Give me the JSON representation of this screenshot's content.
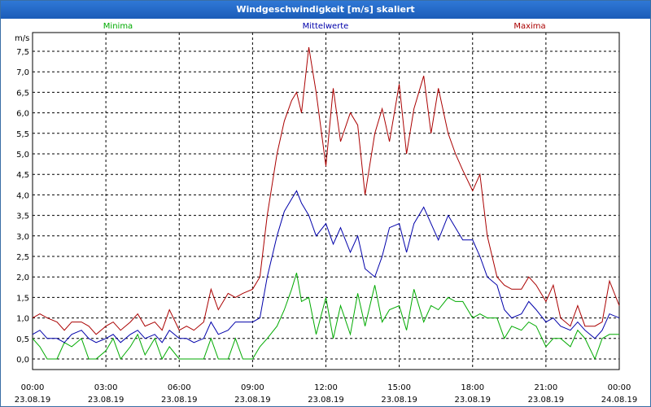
{
  "chart_data": {
    "type": "line",
    "title": "Windgeschwindigkeit [m/s] skaliert",
    "ylabel": "m/s",
    "ylim": [
      -0.2,
      8.0
    ],
    "y_ticks": [
      0.0,
      0.5,
      1.0,
      1.5,
      2.0,
      2.5,
      3.0,
      3.5,
      4.0,
      4.5,
      5.0,
      5.5,
      6.0,
      6.5,
      7.0,
      7.5
    ],
    "y_tick_labels": [
      "0,0",
      "0,5",
      "1,0",
      "1,5",
      "2,0",
      "2,5",
      "3,0",
      "3,5",
      "4,0",
      "4,5",
      "5,0",
      "5,5",
      "6,0",
      "6,5",
      "7,0",
      "7,5"
    ],
    "x_ticks": [
      {
        "time": "00:00",
        "date": "23.08.19"
      },
      {
        "time": "03:00",
        "date": "23.08.19"
      },
      {
        "time": "06:00",
        "date": "23.08.19"
      },
      {
        "time": "09:00",
        "date": "23.08.19"
      },
      {
        "time": "12:00",
        "date": "23.08.19"
      },
      {
        "time": "15:00",
        "date": "23.08.19"
      },
      {
        "time": "18:00",
        "date": "23.08.19"
      },
      {
        "time": "21:00",
        "date": "23.08.19"
      },
      {
        "time": "00:00",
        "date": "24.08.19"
      }
    ],
    "grid": true,
    "legend": "top",
    "series": [
      {
        "name": "Minima",
        "color": "#00aa00",
        "points": [
          [
            0,
            0.5
          ],
          [
            0.3,
            0.3
          ],
          [
            0.6,
            0.0
          ],
          [
            1,
            0.0
          ],
          [
            1.3,
            0.4
          ],
          [
            1.6,
            0.3
          ],
          [
            2,
            0.5
          ],
          [
            2.3,
            0.0
          ],
          [
            2.6,
            0.0
          ],
          [
            3,
            0.2
          ],
          [
            3.3,
            0.5
          ],
          [
            3.6,
            0.0
          ],
          [
            4,
            0.3
          ],
          [
            4.3,
            0.6
          ],
          [
            4.6,
            0.1
          ],
          [
            5,
            0.5
          ],
          [
            5.3,
            0.0
          ],
          [
            5.6,
            0.3
          ],
          [
            6,
            0.0
          ],
          [
            6.3,
            0.0
          ],
          [
            6.6,
            0.0
          ],
          [
            7,
            0.0
          ],
          [
            7.3,
            0.5
          ],
          [
            7.6,
            0.0
          ],
          [
            8,
            0.0
          ],
          [
            8.3,
            0.5
          ],
          [
            8.6,
            0.0
          ],
          [
            9,
            0.0
          ],
          [
            9.3,
            0.3
          ],
          [
            9.6,
            0.5
          ],
          [
            10,
            0.8
          ],
          [
            10.3,
            1.2
          ],
          [
            10.6,
            1.7
          ],
          [
            10.8,
            2.1
          ],
          [
            11,
            1.4
          ],
          [
            11.3,
            1.5
          ],
          [
            11.6,
            0.6
          ],
          [
            12,
            1.5
          ],
          [
            12.3,
            0.5
          ],
          [
            12.6,
            1.3
          ],
          [
            13,
            0.6
          ],
          [
            13.3,
            1.6
          ],
          [
            13.6,
            0.8
          ],
          [
            14,
            1.8
          ],
          [
            14.3,
            0.9
          ],
          [
            14.6,
            1.2
          ],
          [
            15,
            1.3
          ],
          [
            15.3,
            0.7
          ],
          [
            15.6,
            1.7
          ],
          [
            16,
            0.9
          ],
          [
            16.3,
            1.3
          ],
          [
            16.6,
            1.2
          ],
          [
            17,
            1.5
          ],
          [
            17.3,
            1.4
          ],
          [
            17.6,
            1.4
          ],
          [
            18,
            1.0
          ],
          [
            18.3,
            1.1
          ],
          [
            18.6,
            1.0
          ],
          [
            19,
            1.0
          ],
          [
            19.3,
            0.5
          ],
          [
            19.6,
            0.8
          ],
          [
            20,
            0.7
          ],
          [
            20.3,
            0.9
          ],
          [
            20.6,
            0.8
          ],
          [
            21,
            0.3
          ],
          [
            21.3,
            0.5
          ],
          [
            21.6,
            0.5
          ],
          [
            22,
            0.3
          ],
          [
            22.3,
            0.7
          ],
          [
            22.6,
            0.5
          ],
          [
            23,
            0.0
          ],
          [
            23.3,
            0.5
          ],
          [
            23.6,
            0.6
          ],
          [
            24,
            0.6
          ]
        ]
      },
      {
        "name": "Mittelwerte",
        "color": "#0000aa",
        "points": [
          [
            0,
            0.6
          ],
          [
            0.3,
            0.7
          ],
          [
            0.6,
            0.5
          ],
          [
            1,
            0.5
          ],
          [
            1.3,
            0.4
          ],
          [
            1.6,
            0.6
          ],
          [
            2,
            0.7
          ],
          [
            2.3,
            0.5
          ],
          [
            2.6,
            0.4
          ],
          [
            3,
            0.5
          ],
          [
            3.3,
            0.6
          ],
          [
            3.6,
            0.4
          ],
          [
            4,
            0.6
          ],
          [
            4.3,
            0.7
          ],
          [
            4.6,
            0.5
          ],
          [
            5,
            0.6
          ],
          [
            5.3,
            0.4
          ],
          [
            5.6,
            0.7
          ],
          [
            6,
            0.5
          ],
          [
            6.3,
            0.5
          ],
          [
            6.6,
            0.4
          ],
          [
            7,
            0.5
          ],
          [
            7.3,
            0.9
          ],
          [
            7.6,
            0.6
          ],
          [
            8,
            0.7
          ],
          [
            8.3,
            0.9
          ],
          [
            8.6,
            0.9
          ],
          [
            9,
            0.9
          ],
          [
            9.3,
            1.0
          ],
          [
            9.6,
            2.0
          ],
          [
            10,
            3.0
          ],
          [
            10.3,
            3.6
          ],
          [
            10.6,
            3.9
          ],
          [
            10.8,
            4.1
          ],
          [
            11,
            3.8
          ],
          [
            11.3,
            3.5
          ],
          [
            11.6,
            3.0
          ],
          [
            12,
            3.3
          ],
          [
            12.3,
            2.8
          ],
          [
            12.6,
            3.2
          ],
          [
            13,
            2.6
          ],
          [
            13.3,
            3.0
          ],
          [
            13.6,
            2.2
          ],
          [
            14,
            2.0
          ],
          [
            14.3,
            2.5
          ],
          [
            14.6,
            3.2
          ],
          [
            15,
            3.3
          ],
          [
            15.3,
            2.6
          ],
          [
            15.6,
            3.3
          ],
          [
            16,
            3.7
          ],
          [
            16.3,
            3.3
          ],
          [
            16.6,
            2.9
          ],
          [
            17,
            3.5
          ],
          [
            17.3,
            3.2
          ],
          [
            17.6,
            2.9
          ],
          [
            18,
            2.9
          ],
          [
            18.3,
            2.5
          ],
          [
            18.6,
            2.0
          ],
          [
            19,
            1.8
          ],
          [
            19.3,
            1.2
          ],
          [
            19.6,
            1.0
          ],
          [
            20,
            1.1
          ],
          [
            20.3,
            1.4
          ],
          [
            20.6,
            1.2
          ],
          [
            21,
            0.9
          ],
          [
            21.3,
            1.0
          ],
          [
            21.6,
            0.8
          ],
          [
            22,
            0.7
          ],
          [
            22.3,
            0.9
          ],
          [
            22.6,
            0.7
          ],
          [
            23,
            0.5
          ],
          [
            23.3,
            0.7
          ],
          [
            23.6,
            1.1
          ],
          [
            24,
            1.0
          ]
        ]
      },
      {
        "name": "Maxima",
        "color": "#aa0000",
        "points": [
          [
            0,
            1.0
          ],
          [
            0.3,
            1.1
          ],
          [
            0.6,
            1.0
          ],
          [
            1,
            0.9
          ],
          [
            1.3,
            0.7
          ],
          [
            1.6,
            0.9
          ],
          [
            2,
            0.9
          ],
          [
            2.3,
            0.8
          ],
          [
            2.6,
            0.6
          ],
          [
            3,
            0.8
          ],
          [
            3.3,
            0.9
          ],
          [
            3.6,
            0.7
          ],
          [
            4,
            0.9
          ],
          [
            4.3,
            1.1
          ],
          [
            4.6,
            0.8
          ],
          [
            5,
            0.9
          ],
          [
            5.3,
            0.7
          ],
          [
            5.6,
            1.2
          ],
          [
            6,
            0.7
          ],
          [
            6.3,
            0.8
          ],
          [
            6.6,
            0.7
          ],
          [
            7,
            0.9
          ],
          [
            7.3,
            1.7
          ],
          [
            7.6,
            1.2
          ],
          [
            8,
            1.6
          ],
          [
            8.3,
            1.5
          ],
          [
            8.6,
            1.6
          ],
          [
            9,
            1.7
          ],
          [
            9.3,
            2.0
          ],
          [
            9.6,
            3.5
          ],
          [
            10,
            5.0
          ],
          [
            10.3,
            5.8
          ],
          [
            10.6,
            6.3
          ],
          [
            10.8,
            6.5
          ],
          [
            11,
            6.0
          ],
          [
            11.3,
            7.6
          ],
          [
            11.6,
            6.5
          ],
          [
            12,
            4.7
          ],
          [
            12.3,
            6.6
          ],
          [
            12.6,
            5.3
          ],
          [
            13,
            6.0
          ],
          [
            13.3,
            5.7
          ],
          [
            13.6,
            4.0
          ],
          [
            14,
            5.5
          ],
          [
            14.3,
            6.1
          ],
          [
            14.6,
            5.3
          ],
          [
            15,
            6.7
          ],
          [
            15.3,
            5.0
          ],
          [
            15.6,
            6.1
          ],
          [
            16,
            6.9
          ],
          [
            16.3,
            5.5
          ],
          [
            16.6,
            6.6
          ],
          [
            17,
            5.5
          ],
          [
            17.3,
            5.0
          ],
          [
            17.6,
            4.6
          ],
          [
            18,
            4.1
          ],
          [
            18.3,
            4.5
          ],
          [
            18.6,
            3.0
          ],
          [
            19,
            2.0
          ],
          [
            19.3,
            1.8
          ],
          [
            19.6,
            1.7
          ],
          [
            20,
            1.7
          ],
          [
            20.3,
            2.0
          ],
          [
            20.6,
            1.8
          ],
          [
            21,
            1.4
          ],
          [
            21.3,
            1.8
          ],
          [
            21.6,
            1.0
          ],
          [
            22,
            0.8
          ],
          [
            22.3,
            1.3
          ],
          [
            22.6,
            0.8
          ],
          [
            23,
            0.8
          ],
          [
            23.3,
            0.9
          ],
          [
            23.6,
            1.9
          ],
          [
            24,
            1.3
          ]
        ]
      }
    ]
  }
}
